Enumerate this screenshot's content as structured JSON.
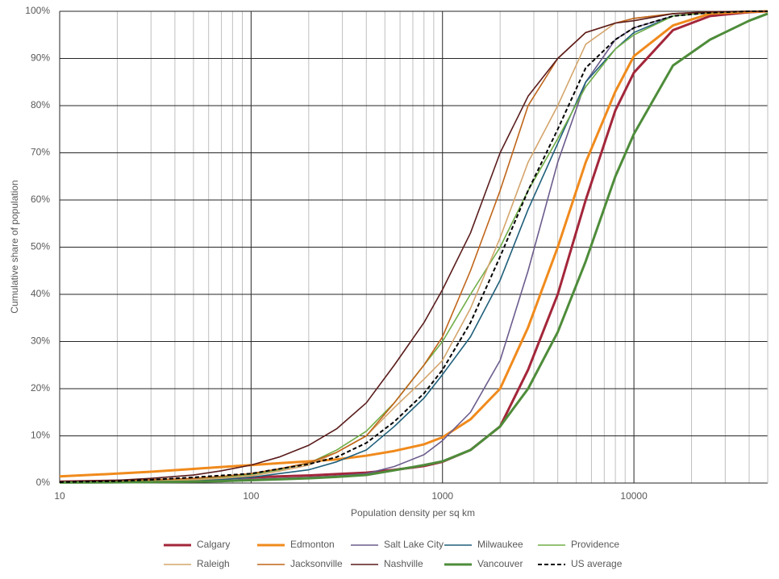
{
  "chart_data": {
    "type": "line",
    "x_label": "Population density per sq km",
    "y_label": "Cumulative share of population",
    "x": [
      10,
      20,
      30,
      50,
      70,
      100,
      140,
      200,
      280,
      400,
      560,
      800,
      1000,
      1400,
      2000,
      2800,
      4000,
      5600,
      8000,
      10000,
      16000,
      25000,
      40000,
      50000
    ],
    "xlim": [
      10,
      50000
    ],
    "xticks": [
      10,
      100,
      1000,
      10000
    ],
    "x_log": true,
    "ylim": [
      0,
      100
    ],
    "yticks": [
      {
        "value": 0,
        "label": "0%"
      },
      {
        "value": 10,
        "label": "10%"
      },
      {
        "value": 20,
        "label": "20%"
      },
      {
        "value": 30,
        "label": "30%"
      },
      {
        "value": 40,
        "label": "40%"
      },
      {
        "value": 50,
        "label": "50%"
      },
      {
        "value": 60,
        "label": "60%"
      },
      {
        "value": 70,
        "label": "70%"
      },
      {
        "value": 80,
        "label": "80%"
      },
      {
        "value": 90,
        "label": "90%"
      },
      {
        "value": 100,
        "label": "100%"
      }
    ],
    "grid": true,
    "minor_grid": true,
    "legend": "bottom",
    "series": [
      {
        "name": "Calgary",
        "color": "#a3263a",
        "style": "bold",
        "values": [
          0.3,
          0.5,
          0.6,
          0.8,
          1.0,
          1.2,
          1.4,
          1.6,
          1.9,
          2.2,
          2.8,
          3.6,
          4.5,
          7,
          12,
          24,
          40,
          60,
          79,
          87,
          96,
          99,
          99.8,
          100
        ]
      },
      {
        "name": "Edmonton",
        "color": "#f08a1c",
        "style": "bold",
        "values": [
          1.4,
          2,
          2.4,
          3,
          3.4,
          3.8,
          4.2,
          4.6,
          5,
          5.8,
          6.8,
          8.2,
          9.7,
          13.5,
          20,
          33,
          50,
          68,
          83,
          90.5,
          97,
          99.5,
          99.9,
          100
        ]
      },
      {
        "name": "Salt Lake City",
        "color": "#6b5b8c",
        "style": "thin",
        "values": [
          0.2,
          0.3,
          0.4,
          0.5,
          0.6,
          0.8,
          1,
          1.2,
          1.5,
          2,
          3.5,
          6,
          9,
          15,
          26,
          45,
          68,
          85,
          94,
          96.5,
          99,
          99.8,
          100,
          100
        ]
      },
      {
        "name": "Milwaukee",
        "color": "#1f5f7a",
        "style": "thin",
        "values": [
          0.2,
          0.3,
          0.4,
          0.6,
          0.8,
          1.2,
          2,
          2.8,
          4.5,
          7,
          12,
          18,
          23,
          31,
          43,
          58,
          72,
          85,
          92,
          95.5,
          99,
          99.7,
          100,
          100
        ]
      },
      {
        "name": "Providence",
        "color": "#70ad47",
        "style": "thin",
        "values": [
          0.1,
          0.2,
          0.4,
          0.8,
          1.2,
          1.8,
          2.8,
          4.2,
          7,
          11,
          17,
          25,
          30,
          40,
          50,
          62,
          73,
          84,
          92,
          95,
          99,
          99.7,
          100,
          100
        ]
      },
      {
        "name": "Raleigh",
        "color": "#d4a56c",
        "style": "thin",
        "values": [
          0.1,
          0.2,
          0.4,
          0.7,
          1,
          1.5,
          2.5,
          3.8,
          6.5,
          10,
          16,
          22,
          26,
          37,
          52,
          68,
          80,
          93,
          97.5,
          98.5,
          99.5,
          99.9,
          100,
          100
        ]
      },
      {
        "name": "Jacksonville",
        "color": "#c0651a",
        "style": "thin",
        "values": [
          0.3,
          0.5,
          0.7,
          1,
          1.4,
          2,
          3,
          4.3,
          6.5,
          10,
          17,
          25,
          31,
          45,
          62,
          80,
          90,
          95.5,
          97.5,
          98.5,
          99.5,
          99.8,
          100,
          100
        ]
      },
      {
        "name": "Nashville",
        "color": "#5a1c1c",
        "style": "thin",
        "values": [
          0.3,
          0.6,
          1,
          1.7,
          2.6,
          3.8,
          5.5,
          8,
          11.5,
          17,
          25,
          34,
          41,
          53,
          70,
          82,
          90,
          95.5,
          97.5,
          98,
          99.5,
          99.9,
          100,
          100
        ]
      },
      {
        "name": "Vancouver",
        "color": "#4e8c3a",
        "style": "bold",
        "values": [
          0.1,
          0.15,
          0.2,
          0.3,
          0.4,
          0.6,
          0.8,
          1,
          1.3,
          1.7,
          2.7,
          3.8,
          4.6,
          7,
          12,
          20,
          32,
          47,
          65,
          74,
          88.5,
          94,
          98,
          99.5
        ]
      },
      {
        "name": "US average",
        "color": "#000000",
        "style": "dashed",
        "values": [
          0.2,
          0.4,
          0.7,
          1.2,
          1.6,
          2,
          3,
          4,
          5.5,
          8.5,
          13,
          19,
          24,
          34,
          48,
          62,
          75,
          88,
          94,
          96.5,
          99,
          99.7,
          100,
          100
        ]
      }
    ]
  }
}
